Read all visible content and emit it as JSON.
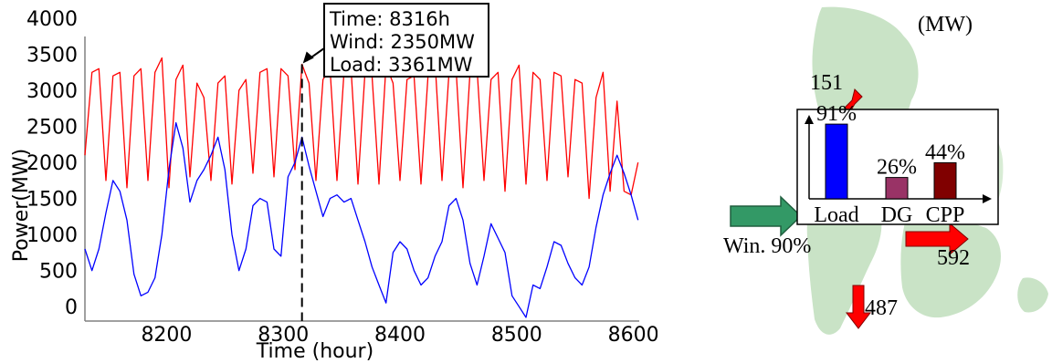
{
  "chart_data": {
    "type": "line",
    "title": "",
    "xlabel": "Time (hour)",
    "ylabel": "Power(MW)",
    "xlim": [
      8130,
      8605
    ],
    "ylim": [
      -200,
      4000
    ],
    "xticks": [
      8200,
      8300,
      8400,
      8500,
      8600
    ],
    "yticks": [
      0,
      500,
      1000,
      1500,
      2000,
      2500,
      3000,
      3500,
      4000
    ],
    "grid": false,
    "series": [
      {
        "color": "#ff0000",
        "x": [
          8130,
          8136,
          8142,
          8148,
          8154,
          8160,
          8166,
          8172,
          8178,
          8184,
          8190,
          8196,
          8202,
          8208,
          8214,
          8220,
          8226,
          8232,
          8238,
          8244,
          8250,
          8256,
          8262,
          8268,
          8274,
          8280,
          8286,
          8292,
          8298,
          8304,
          8310,
          8316,
          8322,
          8328,
          8334,
          8340,
          8346,
          8352,
          8358,
          8364,
          8370,
          8376,
          8382,
          8388,
          8394,
          8400,
          8406,
          8412,
          8418,
          8424,
          8430,
          8436,
          8442,
          8448,
          8454,
          8460,
          8466,
          8472,
          8478,
          8484,
          8490,
          8496,
          8502,
          8508,
          8514,
          8520,
          8526,
          8532,
          8538,
          8544,
          8550,
          8556,
          8562,
          8568,
          8574,
          8580,
          8586,
          8592,
          8598,
          8604
        ],
        "y": [
          2100,
          3250,
          3300,
          1750,
          3200,
          3250,
          1650,
          3200,
          3300,
          1750,
          3250,
          3450,
          1650,
          3150,
          3350,
          1800,
          3100,
          2900,
          1750,
          3100,
          3200,
          1700,
          3000,
          3150,
          1850,
          3250,
          3300,
          1800,
          3300,
          3200,
          1900,
          3361,
          3100,
          1750,
          3150,
          3300,
          1750,
          3250,
          3300,
          1700,
          3250,
          3200,
          1700,
          3350,
          3100,
          1750,
          3150,
          3200,
          1700,
          3200,
          3400,
          1750,
          3250,
          3300,
          1650,
          3250,
          3300,
          1750,
          3150,
          3250,
          1600,
          3150,
          3350,
          1700,
          3250,
          3150,
          1750,
          3250,
          3200,
          1800,
          3150,
          3100,
          1500,
          2900,
          3250,
          1600,
          2850,
          1600,
          1550,
          2000
        ]
      },
      {
        "color": "#0000ff",
        "x": [
          8130,
          8136,
          8142,
          8148,
          8154,
          8160,
          8166,
          8172,
          8178,
          8184,
          8190,
          8196,
          8202,
          8208,
          8214,
          8220,
          8226,
          8232,
          8238,
          8244,
          8250,
          8256,
          8262,
          8268,
          8274,
          8280,
          8286,
          8292,
          8298,
          8304,
          8310,
          8316,
          8322,
          8328,
          8334,
          8340,
          8346,
          8352,
          8358,
          8364,
          8370,
          8376,
          8382,
          8388,
          8394,
          8400,
          8406,
          8412,
          8418,
          8424,
          8430,
          8436,
          8442,
          8448,
          8454,
          8460,
          8466,
          8472,
          8478,
          8484,
          8490,
          8496,
          8502,
          8508,
          8514,
          8520,
          8526,
          8532,
          8538,
          8544,
          8550,
          8556,
          8562,
          8568,
          8574,
          8580,
          8586,
          8592,
          8598,
          8604
        ],
        "y": [
          800,
          500,
          800,
          1300,
          1750,
          1600,
          1200,
          450,
          150,
          200,
          400,
          1000,
          1900,
          2550,
          2200,
          1450,
          1750,
          1900,
          2100,
          2350,
          1900,
          1000,
          500,
          800,
          1400,
          1500,
          1450,
          800,
          700,
          1800,
          2000,
          2350,
          1950,
          1600,
          1250,
          1500,
          1550,
          1450,
          1500,
          1200,
          900,
          550,
          300,
          50,
          750,
          900,
          800,
          500,
          300,
          400,
          700,
          900,
          1400,
          1500,
          1200,
          600,
          300,
          700,
          1150,
          950,
          750,
          150,
          0,
          -150,
          300,
          250,
          550,
          900,
          850,
          600,
          400,
          300,
          550,
          1100,
          1550,
          1850,
          2100,
          1850,
          1550,
          1200
        ]
      }
    ],
    "annotations": [
      {
        "x": 8316,
        "lines": [
          "Time: 8316h",
          "Wind: 2350MW",
          "Load: 3361MW"
        ]
      }
    ]
  },
  "map": {
    "unit": "(MW)",
    "flow_labels": {
      "north": "151",
      "east": "592",
      "south": "487",
      "west": "Win. 90%"
    },
    "inset": {
      "categories": [
        "Load",
        "DG",
        "CPP"
      ],
      "values": [
        91,
        26,
        44
      ],
      "labels": [
        "91%",
        "26%",
        "44%"
      ],
      "colors": [
        "#0000ff",
        "#993366",
        "#800000"
      ]
    },
    "colors": {
      "land": "#c9e3c6",
      "arrow": "#ff0000",
      "wind_arrow": "#339966"
    }
  }
}
